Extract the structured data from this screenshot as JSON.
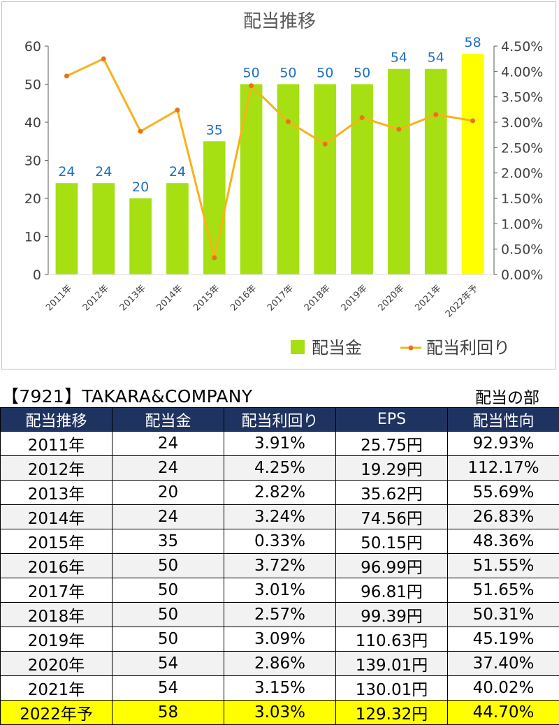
{
  "colors": {
    "bar": "#a6e012",
    "bar_highlight": "#ffff00",
    "line": "#f7b21a",
    "line_marker": "#e8731a",
    "label_blue": "#1f6fbf",
    "header_bg": "#1f3361",
    "highlight_row": "#ffff00"
  },
  "chart_data": {
    "type": "bar",
    "title": "配当推移",
    "categories": [
      "2011年",
      "2012年",
      "2013年",
      "2014年",
      "2015年",
      "2016年",
      "2017年",
      "2018年",
      "2019年",
      "2020年",
      "2021年",
      "2022年予"
    ],
    "series": [
      {
        "name": "配当金",
        "type": "bar",
        "axis": "left",
        "values": [
          24,
          24,
          20,
          24,
          35,
          50,
          50,
          50,
          50,
          54,
          54,
          58
        ],
        "highlight_last": true
      },
      {
        "name": "配当利回り",
        "type": "line",
        "axis": "right",
        "unit": "%",
        "values": [
          3.91,
          4.25,
          2.82,
          3.24,
          0.33,
          3.72,
          3.01,
          2.57,
          3.09,
          2.86,
          3.15,
          3.03
        ]
      }
    ],
    "y_left": {
      "min": 0,
      "max": 60,
      "ticks": [
        "0",
        "10",
        "20",
        "30",
        "40",
        "50",
        "60"
      ]
    },
    "y_right": {
      "min": 0,
      "max": 4.5,
      "ticks": [
        "0.00%",
        "0.50%",
        "1.00%",
        "1.50%",
        "2.00%",
        "2.50%",
        "3.00%",
        "3.50%",
        "4.00%",
        "4.50%"
      ]
    },
    "data_labels": [
      "24",
      "24",
      "20",
      "24",
      "35",
      "50",
      "50",
      "50",
      "50",
      "54",
      "54",
      "58"
    ],
    "legend_position": "bottom-right",
    "grid": true
  },
  "header": {
    "company": "【7921】TAKARA&COMPANY",
    "section": "配当の部"
  },
  "table": {
    "columns": [
      "配当推移",
      "配当金",
      "配当利回り",
      "EPS",
      "配当性向"
    ],
    "rows": [
      [
        "2011年",
        "24",
        "3.91%",
        "25.75円",
        "92.93%"
      ],
      [
        "2012年",
        "24",
        "4.25%",
        "19.29円",
        "112.17%"
      ],
      [
        "2013年",
        "20",
        "2.82%",
        "35.62円",
        "55.69%"
      ],
      [
        "2014年",
        "24",
        "3.24%",
        "74.56円",
        "26.83%"
      ],
      [
        "2015年",
        "35",
        "0.33%",
        "50.15円",
        "48.36%"
      ],
      [
        "2016年",
        "50",
        "3.72%",
        "96.99円",
        "51.55%"
      ],
      [
        "2017年",
        "50",
        "3.01%",
        "96.81円",
        "51.65%"
      ],
      [
        "2018年",
        "50",
        "2.57%",
        "99.39円",
        "50.31%"
      ],
      [
        "2019年",
        "50",
        "3.09%",
        "110.63円",
        "45.19%"
      ],
      [
        "2020年",
        "54",
        "2.86%",
        "139.01円",
        "37.40%"
      ],
      [
        "2021年",
        "54",
        "3.15%",
        "130.01円",
        "40.02%"
      ],
      [
        "2022年予",
        "58",
        "3.03%",
        "129.32円",
        "44.70%"
      ]
    ]
  }
}
